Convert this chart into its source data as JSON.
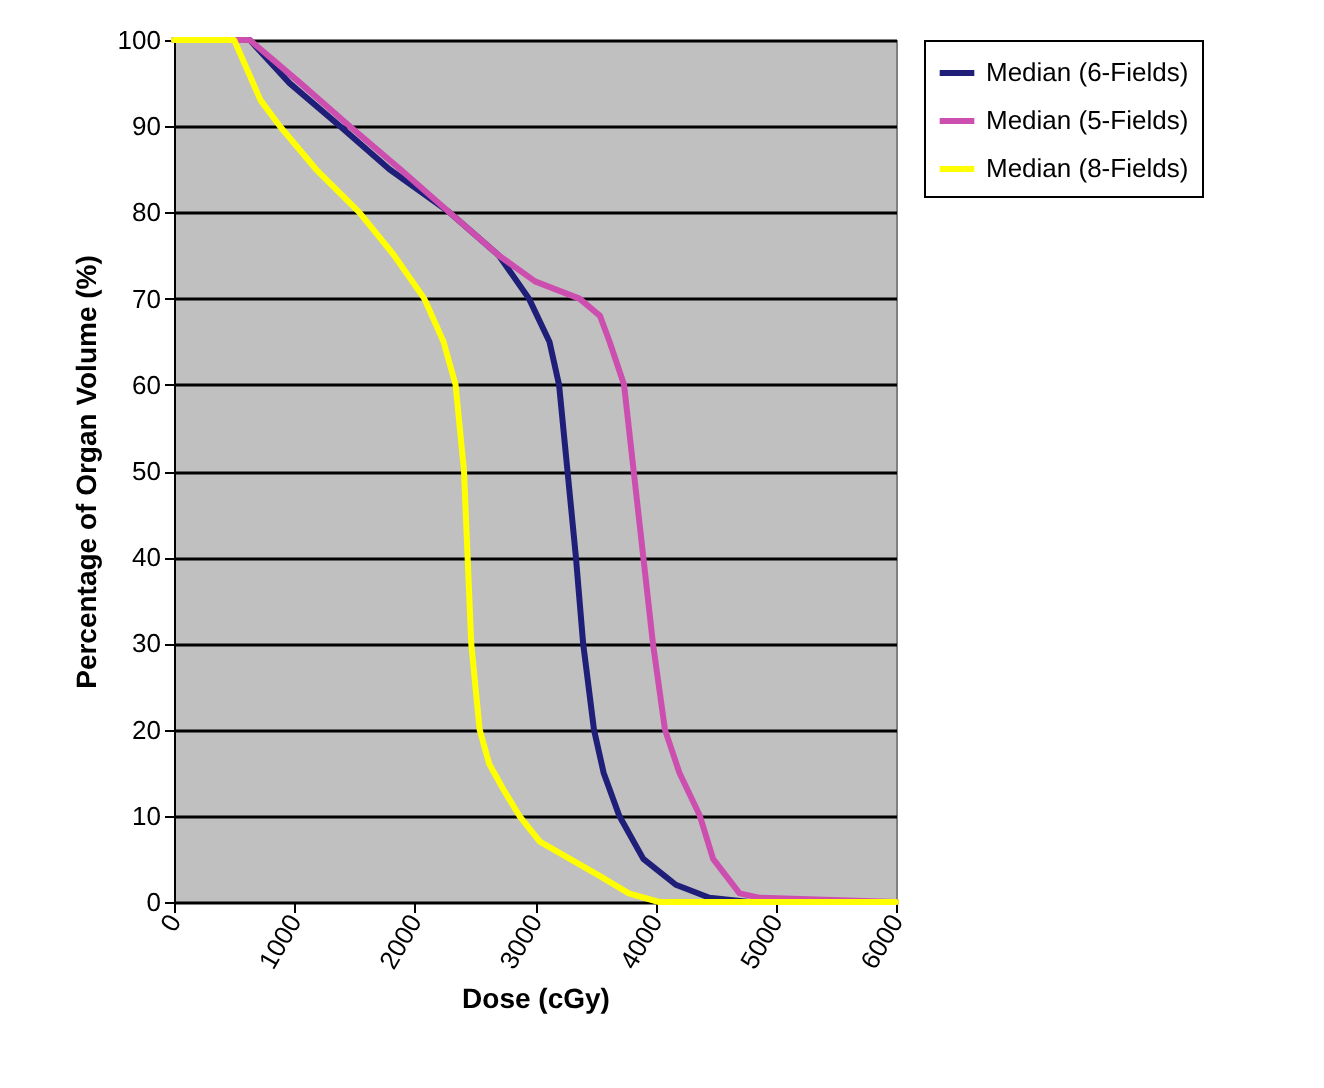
{
  "chart_data": {
    "type": "line",
    "xlabel": "Dose (cGy)",
    "ylabel": "Percentage of Organ Volume (%)",
    "xlim": [
      0,
      6000
    ],
    "xticks": [
      0,
      1000,
      2000,
      3000,
      4000,
      5000,
      6000
    ],
    "ylim": [
      0,
      100
    ],
    "yticks": [
      0,
      10,
      20,
      30,
      40,
      50,
      60,
      70,
      80,
      90,
      100
    ],
    "grid": "y",
    "legend": "right",
    "marker": "none",
    "line_style": "solid",
    "series": [
      {
        "name": "Median (6-Fields)",
        "color": "#1f1f7a",
        "x": [
          0,
          630,
          960,
          1380,
          1790,
          2290,
          2700,
          2950,
          3120,
          3200,
          3270,
          3340,
          3400,
          3490,
          3570,
          3700,
          3900,
          4170,
          4450,
          4780,
          6000
        ],
        "values": [
          100,
          100,
          95,
          90,
          85,
          80,
          75,
          70,
          65,
          60,
          50,
          40,
          30,
          20,
          15,
          10,
          5,
          2,
          0.5,
          0,
          0
        ]
      },
      {
        "name": "Median (5-Fields)",
        "color": "#cc4fb0",
        "x": [
          0,
          630,
          1050,
          1460,
          1880,
          2290,
          2700,
          3000,
          3370,
          3540,
          3620,
          3740,
          3820,
          3900,
          3980,
          4080,
          4200,
          4370,
          4480,
          4700,
          4860,
          6000
        ],
        "values": [
          100,
          100,
          95,
          90,
          85,
          80,
          75,
          72,
          70,
          68,
          65,
          60,
          50,
          40,
          30,
          20,
          15,
          10,
          5,
          1,
          0.5,
          0
        ]
      },
      {
        "name": "Median (8-Fields)",
        "color": "#ffff00",
        "x": [
          0,
          500,
          720,
          880,
          1180,
          1540,
          1830,
          2080,
          2240,
          2340,
          2410,
          2440,
          2470,
          2540,
          2620,
          2740,
          2870,
          3040,
          3290,
          3540,
          3780,
          4030,
          6000
        ],
        "values": [
          100,
          100,
          93,
          90,
          85,
          80,
          75,
          70,
          65,
          60,
          50,
          40,
          30,
          20,
          16,
          13,
          10,
          7,
          5,
          3,
          1,
          0,
          0
        ]
      }
    ]
  }
}
